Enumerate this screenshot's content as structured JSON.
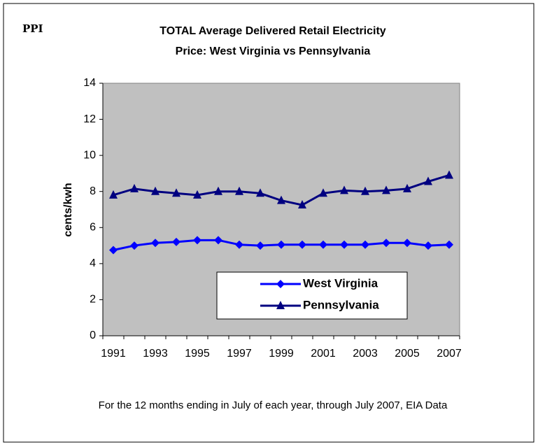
{
  "chart_data": {
    "type": "line",
    "corner_label": "PPI",
    "title": [
      "TOTAL Average Delivered Retail Electricity",
      "Price: West Virginia vs Pennsylvania"
    ],
    "y_label": "cents/kwh",
    "footnote": "For the 12 months ending in July of each year, through July 2007, EIA Data",
    "categories": [
      "1991",
      null,
      "1993",
      null,
      "1995",
      null,
      "1997",
      null,
      "1999",
      null,
      "2001",
      null,
      "2003",
      null,
      "2005",
      null,
      "2007"
    ],
    "series": [
      {
        "name": "West Virginia",
        "color": "#0000ff",
        "marker": "diamond",
        "values": [
          4.75,
          5.0,
          5.15,
          5.2,
          5.3,
          5.3,
          5.05,
          5.0,
          5.05,
          5.05,
          5.05,
          5.05,
          5.05,
          5.15,
          5.15,
          5.0,
          5.05
        ]
      },
      {
        "name": "Pennsylvania",
        "color": "#000080",
        "marker": "triangle",
        "values": [
          7.8,
          8.15,
          8.0,
          7.9,
          7.8,
          8.0,
          8.0,
          7.9,
          7.5,
          7.25,
          7.9,
          8.05,
          8.0,
          8.05,
          8.15,
          8.55,
          8.9
        ]
      }
    ],
    "ylim": [
      0,
      14
    ],
    "yticks": [
      0,
      2,
      4,
      6,
      8,
      10,
      12,
      14
    ],
    "plot_background": "#c0c0c0",
    "legend": "lower right"
  }
}
